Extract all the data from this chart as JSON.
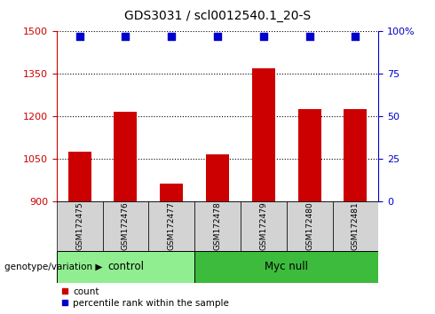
{
  "title": "GDS3031 / scl0012540.1_20-S",
  "samples": [
    "GSM172475",
    "GSM172476",
    "GSM172477",
    "GSM172478",
    "GSM172479",
    "GSM172480",
    "GSM172481"
  ],
  "bar_values": [
    1075,
    1215,
    960,
    1065,
    1370,
    1225,
    1225
  ],
  "percentile_values": [
    97,
    97,
    97,
    97,
    97,
    97,
    97
  ],
  "bar_color": "#cc0000",
  "dot_color": "#0000cc",
  "ylim_left": [
    900,
    1500
  ],
  "ylim_right": [
    0,
    100
  ],
  "yticks_left": [
    900,
    1050,
    1200,
    1350,
    1500
  ],
  "yticks_right": [
    0,
    25,
    50,
    75,
    100
  ],
  "ytick_labels_right": [
    "0",
    "25",
    "50",
    "75",
    "100%"
  ],
  "groups": [
    {
      "label": "control",
      "start": 0,
      "end": 3,
      "color": "#90ee90"
    },
    {
      "label": "Myc null",
      "start": 3,
      "end": 7,
      "color": "#3dbb3d"
    }
  ],
  "group_label_prefix": "genotype/variation",
  "legend_count_label": "count",
  "legend_pct_label": "percentile rank within the sample",
  "grid_color": "black",
  "bar_width": 0.5,
  "tick_area_bg": "#d3d3d3"
}
